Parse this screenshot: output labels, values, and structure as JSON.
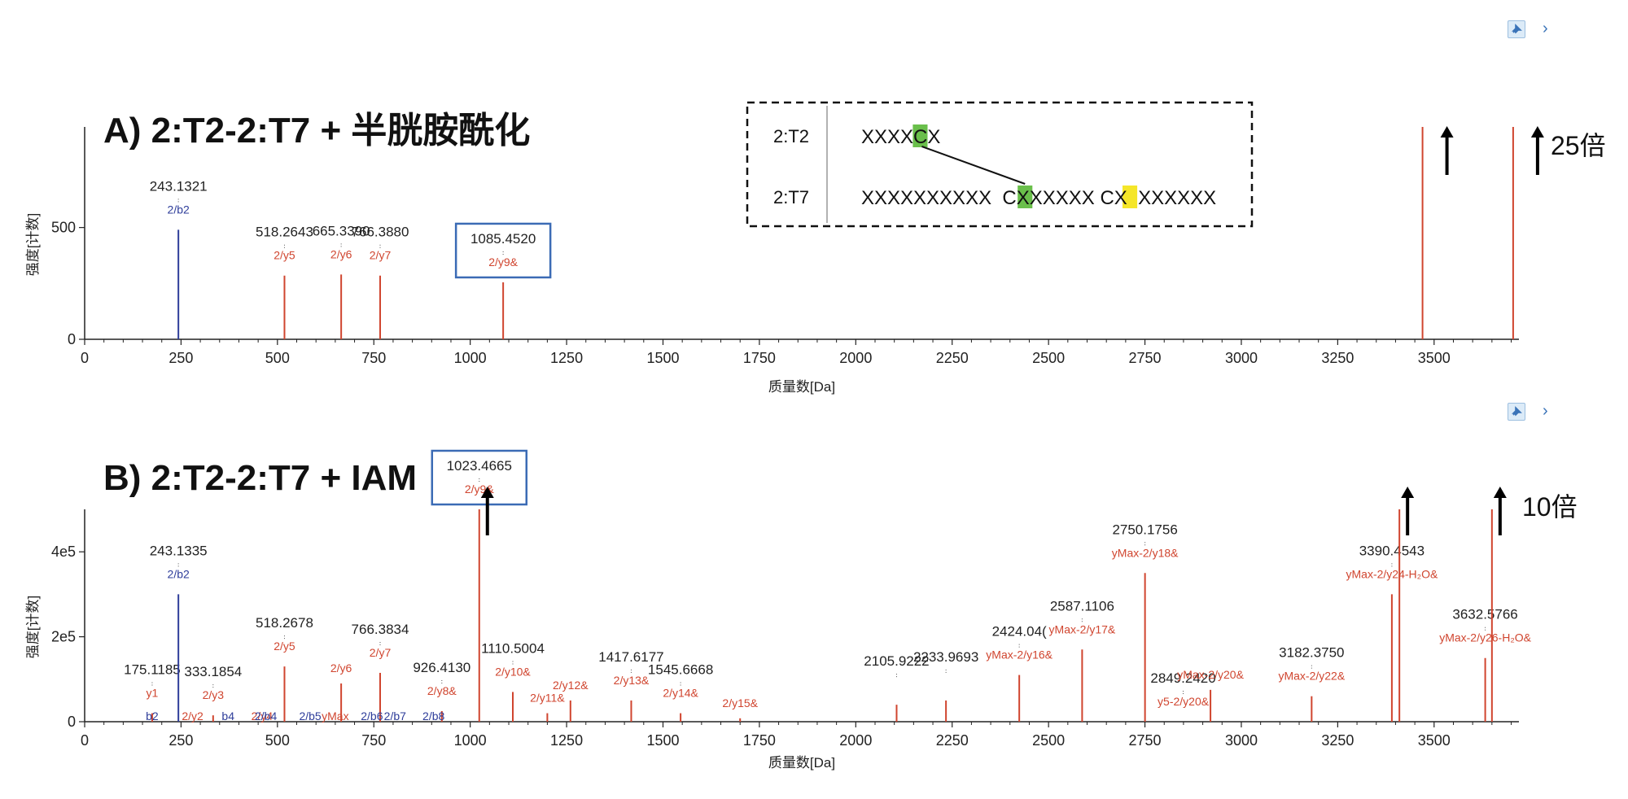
{
  "toolbar": {
    "pin_icon": "pin-icon",
    "expand_icon": "chevron-right-icon",
    "chevron_glyph": "›"
  },
  "chart_data": [
    {
      "type": "bar",
      "title": "A) 2:T2-2:T7 + 半胱胺酰化",
      "xlabel": "质量数[Da]",
      "ylabel": "强度[计数]",
      "xlim": [
        0,
        3720
      ],
      "ylim": [
        0,
        950
      ],
      "x_ticks": [
        0,
        250,
        500,
        750,
        1000,
        1250,
        1500,
        1750,
        2000,
        2250,
        2500,
        2750,
        3000,
        3250,
        3500
      ],
      "y_ticks": [
        0,
        500
      ],
      "y_tick_labels": [
        "0",
        "500"
      ],
      "grid": false,
      "peaks": [
        {
          "x": 243.1321,
          "y": 490,
          "mass": "243.1321",
          "ion": "2/b2",
          "color": "#2e3d9a"
        },
        {
          "x": 518.2643,
          "y": 285,
          "mass": "518.2643",
          "ion": "2/y5",
          "color": "#d0452f"
        },
        {
          "x": 665.339,
          "y": 290,
          "mass": "665.3390",
          "ion": "2/y6",
          "color": "#d0452f"
        },
        {
          "x": 766.388,
          "y": 285,
          "mass": "766.3880",
          "ion": "2/y7",
          "color": "#d0452f"
        },
        {
          "x": 1085.452,
          "y": 255,
          "mass": "1085.4520",
          "ion": "2/y9&",
          "color": "#d0452f",
          "boxed": true
        },
        {
          "x": 3470,
          "y": 950,
          "mass": "",
          "ion": "",
          "color": "#d0452f"
        },
        {
          "x": 3705,
          "y": 950,
          "mass": "",
          "ion": "",
          "color": "#d0452f"
        }
      ],
      "annotation": "25倍",
      "inset": {
        "rows": [
          {
            "name": "2:T2",
            "seq": "XXXXCX",
            "highlights": [
              {
                "index": 4,
                "color": "#6abf4b"
              }
            ]
          },
          {
            "name": "2:T7",
            "seq": "XXXXXXXXXX  CXXXXXX CX  XXXXXX",
            "highlights": [
              {
                "index": 12,
                "color": "#6abf4b"
              },
              {
                "index": 20,
                "color": "#f5e629"
              }
            ]
          }
        ]
      }
    },
    {
      "type": "bar",
      "title": "B) 2:T2-2:T7 + IAM",
      "xlabel": "质量数[Da]",
      "ylabel": "强度[计数]",
      "xlim": [
        0,
        3720
      ],
      "ylim": [
        0,
        500000
      ],
      "x_ticks": [
        0,
        250,
        500,
        750,
        1000,
        1250,
        1500,
        1750,
        2000,
        2250,
        2500,
        2750,
        3000,
        3250,
        3500
      ],
      "y_ticks": [
        0,
        200000,
        400000
      ],
      "y_tick_labels": [
        "0",
        "2e5",
        "4e5"
      ],
      "grid": false,
      "peaks": [
        {
          "x": 175.1185,
          "y": 20000,
          "mass": "175.1185",
          "ion": "y1",
          "color": "#d0452f"
        },
        {
          "x": 243.1335,
          "y": 300000,
          "mass": "243.1335",
          "ion": "2/b2",
          "color": "#2e3d9a"
        },
        {
          "x": 333.1854,
          "y": 15000,
          "mass": "333.1854",
          "ion": "2/y3",
          "color": "#d0452f"
        },
        {
          "x": 518.2678,
          "y": 130000,
          "mass": "518.2678",
          "ion": "2/y5",
          "color": "#d0452f"
        },
        {
          "x": 665.3,
          "y": 90000,
          "mass": "",
          "ion": "2/y6",
          "color": "#d0452f"
        },
        {
          "x": 766.3834,
          "y": 115000,
          "mass": "766.3834",
          "ion": "2/y7",
          "color": "#d0452f"
        },
        {
          "x": 926.413,
          "y": 25000,
          "mass": "926.4130",
          "ion": "2/y8&",
          "color": "#d0452f"
        },
        {
          "x": 1023.4665,
          "y": 500000,
          "mass": "1023.4665",
          "ion": "2/y9&",
          "color": "#d0452f",
          "boxed": true
        },
        {
          "x": 1110.5004,
          "y": 70000,
          "mass": "1110.5004",
          "ion": "2/y10&",
          "color": "#d0452f"
        },
        {
          "x": 1200,
          "y": 20000,
          "mass": "",
          "ion": "2/y11&",
          "color": "#d0452f"
        },
        {
          "x": 1260,
          "y": 50000,
          "mass": "",
          "ion": "2/y12&",
          "color": "#d0452f"
        },
        {
          "x": 1417.6177,
          "y": 50000,
          "mass": "1417.6177",
          "ion": "2/y13&",
          "color": "#d0452f"
        },
        {
          "x": 1545.6668,
          "y": 20000,
          "mass": "1545.6668",
          "ion": "2/y14&",
          "color": "#d0452f"
        },
        {
          "x": 1700,
          "y": 8000,
          "mass": "",
          "ion": "2/y15&",
          "color": "#d0452f"
        },
        {
          "x": 2105.9222,
          "y": 40000,
          "mass": "2105.9222",
          "ion": "",
          "color": "#d0452f"
        },
        {
          "x": 2233.9693,
          "y": 50000,
          "mass": "2233.9693",
          "ion": "",
          "color": "#d0452f"
        },
        {
          "x": 2424.04,
          "y": 110000,
          "mass": "2424.04(",
          "ion": "yMax-2/y16&",
          "color": "#d0452f"
        },
        {
          "x": 2587.1106,
          "y": 170000,
          "mass": "2587.1106",
          "ion": "yMax-2/y17&",
          "color": "#d0452f"
        },
        {
          "x": 2750.1756,
          "y": 350000,
          "mass": "2750.1756",
          "ion": "yMax-2/y18&",
          "color": "#d0452f"
        },
        {
          "x": 2849.242,
          "y": 0,
          "mass": "2849.2420",
          "ion": "y5-2/y20&",
          "color": "#d0452f"
        },
        {
          "x": 2920,
          "y": 75000,
          "mass": "",
          "ion": "yMax-2/y20&",
          "color": "#d0452f"
        },
        {
          "x": 3182.375,
          "y": 60000,
          "mass": "3182.3750",
          "ion": "yMax-2/y22&",
          "color": "#d0452f"
        },
        {
          "x": 3390.4543,
          "y": 300000,
          "mass": "3390.4543",
          "ion": "yMax-2/y24-H₂O&",
          "color": "#d0452f"
        },
        {
          "x": 3410,
          "y": 500000,
          "mass": "",
          "ion": "",
          "color": "#d0452f"
        },
        {
          "x": 3632.5766,
          "y": 150000,
          "mass": "3632.5766",
          "ion": "yMax-2/y26-H₂O&",
          "color": "#d0452f"
        },
        {
          "x": 3650,
          "y": 500000,
          "mass": "",
          "ion": "",
          "color": "#d0452f"
        }
      ],
      "minor_labels": [
        {
          "text": "b2",
          "x": 175,
          "color": "#2e3d9a"
        },
        {
          "text": "2/y2",
          "x": 280,
          "color": "#d0452f"
        },
        {
          "text": "b4",
          "x": 372,
          "color": "#2e3d9a"
        },
        {
          "text": "2/y4",
          "x": 460,
          "color": "#d0452f"
        },
        {
          "text": "2/b4",
          "x": 470,
          "color": "#2e3d9a"
        },
        {
          "text": "2/b5",
          "x": 585,
          "color": "#2e3d9a"
        },
        {
          "text": "yMax",
          "x": 650,
          "color": "#d0452f"
        },
        {
          "text": "2/b6",
          "x": 745,
          "color": "#2e3d9a"
        },
        {
          "text": "2/b7",
          "x": 805,
          "color": "#2e3d9a"
        },
        {
          "text": "2/b8",
          "x": 905,
          "color": "#2e3d9a"
        }
      ],
      "annotation": "10倍"
    }
  ]
}
